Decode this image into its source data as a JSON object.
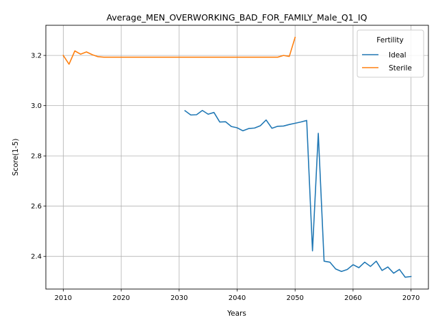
{
  "chart_data": {
    "type": "line",
    "title": "Average_MEN_OVERWORKING_BAD_FOR_FAMILY_Male_Q1_IQ",
    "xlabel": "Years",
    "ylabel": "Score(1-5)",
    "xlim": [
      2007,
      2073
    ],
    "ylim": [
      2.27,
      3.32
    ],
    "xticks": [
      2010,
      2020,
      2030,
      2040,
      2050,
      2060,
      2070
    ],
    "yticks": [
      2.4,
      2.6,
      2.8,
      3.0,
      3.2
    ],
    "ytick_labels": [
      "2.4",
      "2.6",
      "2.8",
      "3.0",
      "3.2"
    ],
    "grid": true,
    "legend": {
      "title": "Fertility",
      "placement": "top-right"
    },
    "series": [
      {
        "name": "Ideal",
        "color": "#1f77b4",
        "x": [
          2031,
          2032,
          2033,
          2034,
          2035,
          2036,
          2037,
          2038,
          2039,
          2040,
          2041,
          2042,
          2043,
          2044,
          2045,
          2046,
          2047,
          2048,
          2049,
          2050,
          2051,
          2052,
          2053,
          2054,
          2055,
          2056,
          2057,
          2058,
          2059,
          2060,
          2061,
          2062,
          2063,
          2064,
          2065,
          2066,
          2067,
          2068,
          2069,
          2070
        ],
        "y": [
          2.98,
          2.963,
          2.964,
          2.981,
          2.966,
          2.973,
          2.935,
          2.936,
          2.917,
          2.912,
          2.9,
          2.909,
          2.911,
          2.92,
          2.943,
          2.91,
          2.918,
          2.919,
          2.925,
          2.93,
          2.935,
          2.941,
          2.422,
          2.89,
          2.381,
          2.377,
          2.35,
          2.34,
          2.348,
          2.367,
          2.355,
          2.377,
          2.36,
          2.381,
          2.344,
          2.358,
          2.333,
          2.348,
          2.317,
          2.32
        ]
      },
      {
        "name": "Sterile",
        "color": "#ff7f0e",
        "x": [
          2010,
          2011,
          2012,
          2013,
          2014,
          2015,
          2016,
          2017,
          2018,
          2019,
          2020,
          2021,
          2022,
          2023,
          2024,
          2025,
          2026,
          2027,
          2028,
          2029,
          2030,
          2031,
          2032,
          2033,
          2034,
          2035,
          2036,
          2037,
          2038,
          2039,
          2040,
          2041,
          2042,
          2043,
          2044,
          2045,
          2046,
          2047,
          2048,
          2049,
          2050
        ],
        "y": [
          3.2,
          3.165,
          3.218,
          3.205,
          3.214,
          3.203,
          3.195,
          3.193,
          3.193,
          3.193,
          3.193,
          3.193,
          3.193,
          3.193,
          3.193,
          3.193,
          3.193,
          3.193,
          3.193,
          3.193,
          3.193,
          3.193,
          3.193,
          3.193,
          3.193,
          3.193,
          3.193,
          3.193,
          3.193,
          3.193,
          3.193,
          3.193,
          3.193,
          3.193,
          3.193,
          3.193,
          3.193,
          3.193,
          3.2,
          3.196,
          3.272
        ]
      }
    ]
  }
}
